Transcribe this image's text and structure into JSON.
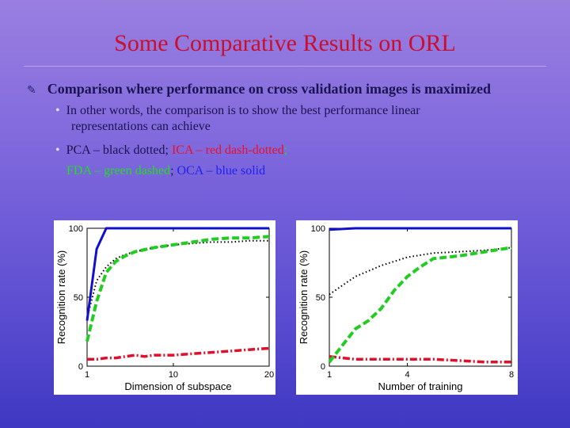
{
  "slide": {
    "title": "Some Comparative Results on ORL",
    "bullet_main": "Comparison where performance on cross validation images is maximized",
    "sub1_line1": "In other words, the comparison is to show the best performance linear",
    "sub1_line2": "representations can achieve",
    "sub2_pca": "PCA – black dotted;",
    "sub2_ica": "ICA – red dash-dotted",
    "sub2_sep1": ";",
    "sub2_fda": "FDA – green dashed",
    "sub2_sep2": ";",
    "sub2_oca": "OCA – blue solid",
    "colors": {
      "title": "#c8102e",
      "pca": "#000000",
      "ica": "#e0102a",
      "fda": "#22cc22",
      "oca": "#1010cc"
    }
  },
  "chart_data": [
    {
      "type": "line",
      "title": "",
      "xlabel": "Dimension of subspace",
      "ylabel": "Recognition rate (%)",
      "xlim": [
        1,
        20
      ],
      "ylim": [
        0,
        100
      ],
      "xticks": [
        1,
        10,
        20
      ],
      "yticks": [
        0,
        50,
        100
      ],
      "series": [
        {
          "style": "oca",
          "x": [
            1,
            2,
            3,
            4,
            20
          ],
          "y": [
            33,
            85,
            100,
            100,
            100
          ]
        },
        {
          "style": "pca",
          "x": [
            1,
            2,
            3,
            4,
            5,
            6,
            8,
            10,
            12,
            14,
            16,
            18,
            20
          ],
          "y": [
            35,
            62,
            72,
            78,
            81,
            83,
            86,
            88,
            89,
            90,
            90,
            91,
            91
          ]
        },
        {
          "style": "fda",
          "x": [
            1,
            2,
            3,
            4,
            5,
            6,
            8,
            10,
            12,
            14,
            16,
            18,
            20
          ],
          "y": [
            18,
            47,
            68,
            76,
            80,
            83,
            86,
            88,
            90,
            92,
            93,
            93,
            94
          ]
        },
        {
          "style": "ica",
          "x": [
            1,
            2,
            3,
            4,
            5,
            6,
            7,
            8,
            10,
            12,
            14,
            16,
            18,
            20
          ],
          "y": [
            5,
            5,
            6,
            6,
            7,
            8,
            7,
            8,
            8,
            9,
            10,
            11,
            12,
            13
          ]
        }
      ]
    },
    {
      "type": "line",
      "title": "",
      "xlabel": "Number of training",
      "ylabel": "Recognition rate (%)",
      "xlim": [
        1,
        8
      ],
      "ylim": [
        0,
        100
      ],
      "xticks": [
        1,
        4,
        8
      ],
      "yticks": [
        0,
        50,
        100
      ],
      "series": [
        {
          "style": "oca",
          "x": [
            1,
            2,
            8
          ],
          "y": [
            99,
            100,
            100
          ]
        },
        {
          "style": "pca",
          "x": [
            1,
            2,
            3,
            4,
            5,
            6,
            7,
            8
          ],
          "y": [
            52,
            65,
            73,
            79,
            82,
            83,
            84,
            86
          ]
        },
        {
          "style": "fda",
          "x": [
            1,
            1.5,
            2,
            2.5,
            3,
            3.5,
            4,
            4.5,
            5,
            6,
            7,
            8
          ],
          "y": [
            3,
            15,
            27,
            33,
            42,
            55,
            65,
            72,
            78,
            80,
            83,
            86
          ]
        },
        {
          "style": "ica",
          "x": [
            1,
            2,
            3,
            4,
            5,
            6,
            7,
            8
          ],
          "y": [
            7,
            5,
            5,
            5,
            5,
            4,
            3,
            3
          ]
        }
      ]
    }
  ]
}
